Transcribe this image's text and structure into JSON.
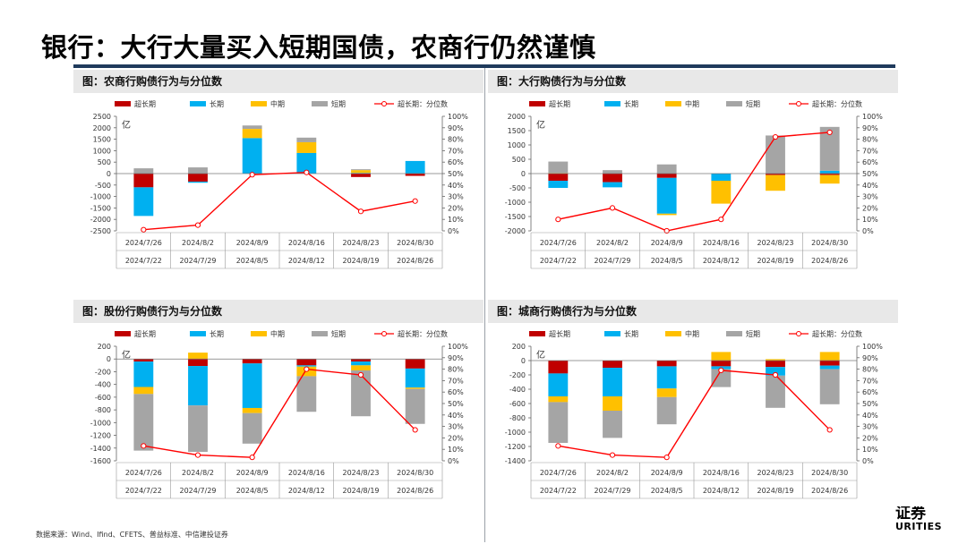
{
  "title": "银行：大行大量买入短期国债，农商行仍然谨慎",
  "source": "数据来源：Wind、Ifind、CFETS、普益标准、中信建投证券",
  "logo": {
    "line1": "证券",
    "line2": "URITIES"
  },
  "legend": [
    "超长期",
    "长期",
    "中期",
    "短期",
    "超长期：分位数"
  ],
  "colors": {
    "超长期": "#c00000",
    "长期": "#00b0f0",
    "中期": "#ffc000",
    "短期": "#a5a5a5",
    "分位数": "#ff0000"
  },
  "unit": "亿",
  "chart_data": [
    {
      "panel_title": "图：农商行购债行为与分位数",
      "type": "bar",
      "stacked": true,
      "categories": [
        "2024/7/26|2024/7/22",
        "2024/8/2|2024/7/29",
        "2024/8/9|2024/8/5",
        "2024/8/16|2024/8/12",
        "2024/8/23|2024/8/19",
        "2024/8/30|2024/8/26"
      ],
      "x_top": [
        "2024/7/26",
        "2024/8/2",
        "2024/8/9",
        "2024/8/16",
        "2024/8/23",
        "2024/8/30"
      ],
      "x_bottom": [
        "2024/7/22",
        "2024/7/29",
        "2024/8/5",
        "2024/8/12",
        "2024/8/19",
        "2024/8/26"
      ],
      "series": [
        {
          "name": "超长期",
          "values": [
            -600,
            -350,
            0,
            0,
            -150,
            -100
          ]
        },
        {
          "name": "长期",
          "values": [
            -1250,
            -50,
            1550,
            900,
            30,
            550
          ]
        },
        {
          "name": "中期",
          "values": [
            0,
            0,
            400,
            470,
            120,
            0
          ]
        },
        {
          "name": "短期",
          "values": [
            230,
            270,
            150,
            200,
            40,
            0
          ]
        }
      ],
      "line": {
        "name": "超长期：分位数",
        "values": [
          0.01,
          0.05,
          0.49,
          0.51,
          0.17,
          0.26
        ]
      },
      "ylim": [
        -2500,
        2500
      ],
      "ystep": 500,
      "yticks_left": [
        "2500",
        "2000",
        "1500",
        "1000",
        "500",
        "0",
        "-500",
        "-1000",
        "-1500",
        "-2000",
        "-2500"
      ],
      "yticks_right": [
        "100%",
        "90%",
        "80%",
        "70%",
        "60%",
        "50%",
        "40%",
        "30%",
        "20%",
        "10%",
        "0%"
      ]
    },
    {
      "panel_title": "图：大行购债行为与分位数",
      "type": "bar",
      "stacked": true,
      "x_top": [
        "2024/7/26",
        "2024/8/2",
        "2024/8/9",
        "2024/8/16",
        "2024/8/23",
        "2024/8/30"
      ],
      "x_bottom": [
        "2024/7/22",
        "2024/7/29",
        "2024/8/5",
        "2024/8/12",
        "2024/8/19",
        "2024/8/26"
      ],
      "series": [
        {
          "name": "超长期",
          "values": [
            -250,
            -300,
            -150,
            0,
            -50,
            -50
          ]
        },
        {
          "name": "长期",
          "values": [
            -250,
            -180,
            -1250,
            -250,
            0,
            100
          ]
        },
        {
          "name": "中期",
          "values": [
            20,
            0,
            -50,
            -800,
            -550,
            -300
          ]
        },
        {
          "name": "短期",
          "values": [
            400,
            120,
            320,
            0,
            1330,
            1530
          ]
        }
      ],
      "line": {
        "name": "超长期：分位数",
        "values": [
          0.1,
          0.2,
          0.0,
          0.1,
          0.82,
          0.86
        ]
      },
      "ylim": [
        -2000,
        2000
      ],
      "ystep": 500,
      "yticks_left": [
        "2000",
        "1500",
        "1000",
        "500",
        "0",
        "-500",
        "-1000",
        "-1500",
        "-2000"
      ],
      "yticks_right": [
        "100%",
        "90%",
        "80%",
        "70%",
        "60%",
        "50%",
        "40%",
        "30%",
        "20%",
        "10%",
        "0%"
      ]
    },
    {
      "panel_title": "图：股份行购债行为与分位数",
      "type": "bar",
      "stacked": true,
      "x_top": [
        "2024/7/26",
        "2024/8/2",
        "2024/8/9",
        "2024/8/16",
        "2024/8/23",
        "2024/8/30"
      ],
      "x_bottom": [
        "2024/7/22",
        "2024/7/29",
        "2024/8/5",
        "2024/8/12",
        "2024/8/19",
        "2024/8/26"
      ],
      "series": [
        {
          "name": "超长期",
          "values": [
            -40,
            -110,
            -70,
            -100,
            -40,
            -150
          ]
        },
        {
          "name": "长期",
          "values": [
            -400,
            -620,
            -700,
            -20,
            -60,
            -300
          ]
        },
        {
          "name": "中期",
          "values": [
            -110,
            100,
            -80,
            -150,
            -80,
            -20
          ]
        },
        {
          "name": "短期",
          "values": [
            -890,
            -730,
            -480,
            -560,
            -720,
            -550
          ]
        }
      ],
      "line": {
        "name": "超长期：分位数",
        "values": [
          0.13,
          0.05,
          0.03,
          0.8,
          0.75,
          0.27
        ]
      },
      "ylim": [
        -1600,
        200
      ],
      "ystep": 200,
      "yticks_left": [
        "200",
        "0",
        "-200",
        "-400",
        "-600",
        "-800",
        "-1000",
        "-1200",
        "-1400",
        "-1600"
      ],
      "yticks_right": [
        "100%",
        "90%",
        "80%",
        "70%",
        "60%",
        "50%",
        "40%",
        "30%",
        "20%",
        "10%",
        "0%"
      ]
    },
    {
      "panel_title": "图：城商行购债行为与分位数",
      "type": "bar",
      "stacked": true,
      "x_top": [
        "2024/7/26",
        "2024/8/2",
        "2024/8/9",
        "2024/8/16",
        "2024/8/23",
        "2024/8/30"
      ],
      "x_bottom": [
        "2024/7/22",
        "2024/7/29",
        "2024/8/5",
        "2024/8/12",
        "2024/8/19",
        "2024/8/26"
      ],
      "series": [
        {
          "name": "超长期",
          "values": [
            -180,
            -100,
            -80,
            -80,
            -90,
            -70
          ]
        },
        {
          "name": "长期",
          "values": [
            -320,
            -400,
            -310,
            -40,
            -120,
            -50
          ]
        },
        {
          "name": "中期",
          "values": [
            -80,
            -200,
            -120,
            120,
            20,
            120
          ]
        },
        {
          "name": "短期",
          "values": [
            -570,
            -380,
            -380,
            -250,
            -450,
            -490
          ]
        }
      ],
      "line": {
        "name": "超长期：分位数",
        "values": [
          0.13,
          0.05,
          0.03,
          0.79,
          0.75,
          0.27
        ]
      },
      "ylim": [
        -1400,
        200
      ],
      "ystep": 200,
      "yticks_left": [
        "200",
        "0",
        "-200",
        "-400",
        "-600",
        "-800",
        "-1000",
        "-1200",
        "-1400"
      ],
      "yticks_right": [
        "100%",
        "90%",
        "80%",
        "70%",
        "60%",
        "50%",
        "40%",
        "30%",
        "20%",
        "10%",
        "0%"
      ]
    }
  ]
}
